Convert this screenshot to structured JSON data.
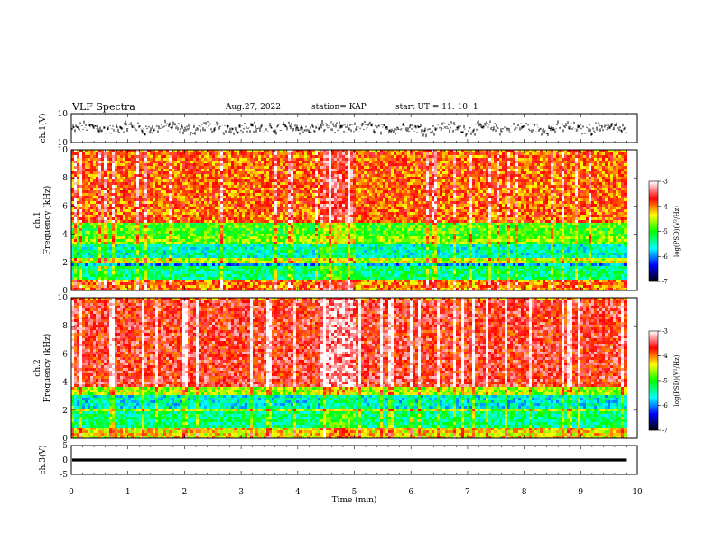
{
  "header": {
    "title": "VLF Spectra",
    "date": "Aug.27, 2022",
    "station": "station= KAP",
    "start": "start  UT =   11: 10: 1"
  },
  "chart_data": [
    {
      "type": "line",
      "panel": "ch1_waveform",
      "ylabel": "ch.1(V)",
      "ylim": [
        -10,
        10
      ],
      "yticks": [
        "10",
        "-10"
      ],
      "xlim": [
        0,
        10
      ],
      "description_values": {
        "baseline": 0,
        "range_min": -5,
        "range_max": 5,
        "end_min": 9.8
      }
    },
    {
      "type": "heatmap",
      "panel": "ch1_spectrogram",
      "ylabel": "ch.1\nFrequency  (kHz)",
      "ylim": [
        0,
        10
      ],
      "yticks": [
        "0",
        "2",
        "4",
        "6",
        "8",
        "10"
      ],
      "xlim": [
        0,
        10
      ],
      "colorbar": {
        "label": "log(PSD)(V²/Hz)",
        "range": [
          -7,
          -3
        ],
        "ticks": [
          "-3",
          "-4",
          "-5",
          "-6",
          "-7"
        ]
      },
      "bands": [
        {
          "fmin": 0.0,
          "fmax": 0.8,
          "level": -4.0
        },
        {
          "fmin": 0.8,
          "fmax": 1.8,
          "level": -5.3
        },
        {
          "fmin": 1.8,
          "fmax": 2.1,
          "level": -5.9
        },
        {
          "fmin": 2.1,
          "fmax": 2.4,
          "level": -4.5
        },
        {
          "fmin": 2.4,
          "fmax": 3.4,
          "level": -5.5
        },
        {
          "fmin": 3.4,
          "fmax": 4.0,
          "level": -4.7
        },
        {
          "fmin": 4.0,
          "fmax": 5.0,
          "level": -4.9
        },
        {
          "fmin": 5.0,
          "fmax": 10.0,
          "level": -3.9
        }
      ]
    },
    {
      "type": "heatmap",
      "panel": "ch2_spectrogram",
      "ylabel": "ch.2\nFrequency  (kHz)",
      "ylim": [
        0,
        10
      ],
      "yticks": [
        "0",
        "2",
        "4",
        "6",
        "8",
        "10"
      ],
      "xlim": [
        0,
        10
      ],
      "colorbar": {
        "label": "log(PSD)(V²/Hz)",
        "range": [
          -7,
          -3
        ],
        "ticks": [
          "-3",
          "-4",
          "-5",
          "-6",
          "-7"
        ]
      },
      "bands": [
        {
          "fmin": 0.0,
          "fmax": 0.8,
          "level": -4.3
        },
        {
          "fmin": 0.8,
          "fmax": 2.0,
          "level": -5.3
        },
        {
          "fmin": 2.0,
          "fmax": 2.3,
          "level": -4.6
        },
        {
          "fmin": 2.3,
          "fmax": 3.2,
          "level": -5.6
        },
        {
          "fmin": 3.2,
          "fmax": 3.8,
          "level": -4.6
        },
        {
          "fmin": 3.8,
          "fmax": 10.0,
          "level": -3.6
        }
      ]
    },
    {
      "type": "line",
      "panel": "ch3_waveform",
      "ylabel": "ch.3(V)",
      "ylim": [
        -5,
        5
      ],
      "yticks": [
        "5",
        "0",
        "-5"
      ],
      "xlim": [
        0,
        10
      ],
      "xlabel": "Time  (min)",
      "xticks": [
        "0",
        "1",
        "2",
        "3",
        "4",
        "5",
        "6",
        "7",
        "8",
        "9",
        "10"
      ],
      "description_values": {
        "baseline": 0,
        "band_halfwidth": 0.5,
        "end_min": 9.8
      }
    }
  ],
  "colors": {
    "scale": [
      "#000000",
      "#0000ff",
      "#00ffff",
      "#00ff00",
      "#ffff00",
      "#ff0000",
      "#ffffff"
    ]
  }
}
